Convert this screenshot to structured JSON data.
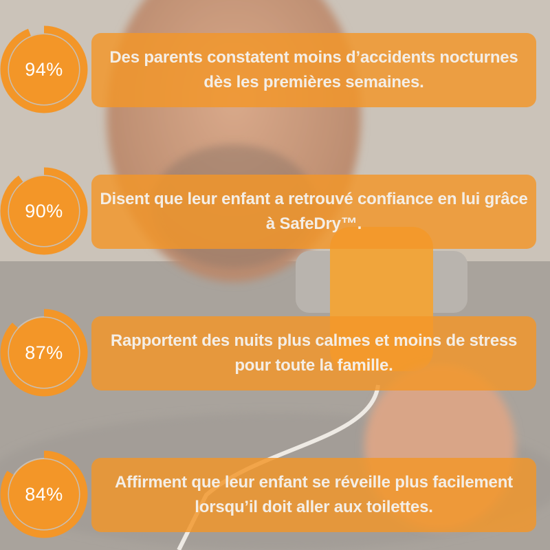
{
  "colors": {
    "accent": "#f39628",
    "text": "#f4eee6",
    "ring_track": "#c8bfb4"
  },
  "stats": [
    {
      "percent": 94,
      "label": "94%",
      "text": "Des parents constatent moins d’accidents nocturnes dès les premières semaines."
    },
    {
      "percent": 90,
      "label": "90%",
      "text": "Disent que leur enfant a retrouvé confiance en lui grâce à SafeDry™."
    },
    {
      "percent": 87,
      "label": "87%",
      "text": "Rapportent des nuits plus calmes et moins de stress pour toute la famille."
    },
    {
      "percent": 84,
      "label": "84%",
      "text": "Affirment que leur enfant se réveille plus facilement lorsqu’il doit aller aux toilettes."
    }
  ]
}
